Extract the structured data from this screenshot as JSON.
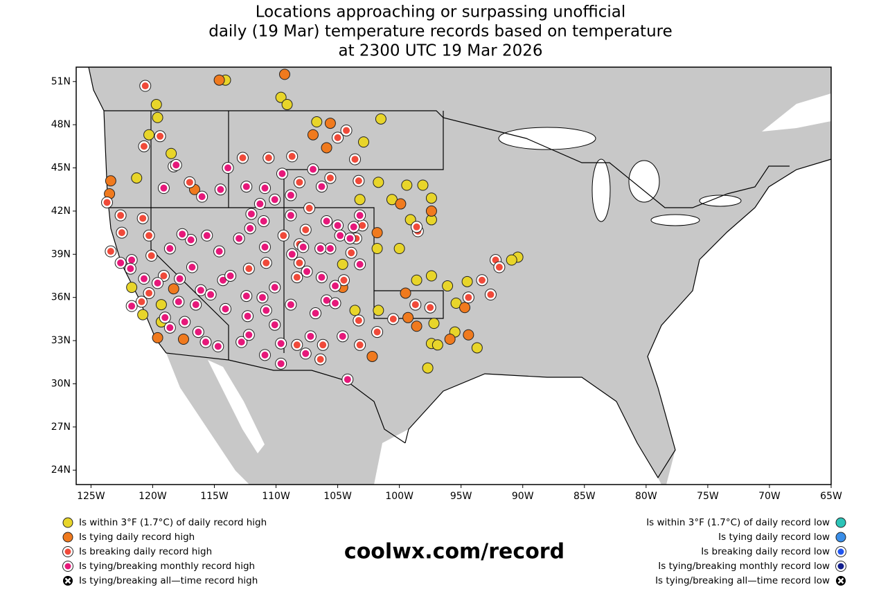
{
  "chart_data": {
    "type": "scatter",
    "title": [
      "Locations approaching or surpassing unofficial",
      "daily (19 Mar) temperature records based on temperature",
      "at 2300 UTC 19 Mar 2026"
    ],
    "annotation": "coolwx.com/record",
    "xlim": [
      -126.2,
      -65
    ],
    "ylim": [
      23,
      52
    ],
    "xticks": [
      {
        "value": -125,
        "label": "125W"
      },
      {
        "value": -120,
        "label": "120W"
      },
      {
        "value": -115,
        "label": "115W"
      },
      {
        "value": -110,
        "label": "110W"
      },
      {
        "value": -105,
        "label": "105W"
      },
      {
        "value": -100,
        "label": "100W"
      },
      {
        "value": -95,
        "label": "95W"
      },
      {
        "value": -90,
        "label": "90W"
      },
      {
        "value": -85,
        "label": "85W"
      },
      {
        "value": -80,
        "label": "80W"
      },
      {
        "value": -75,
        "label": "75W"
      },
      {
        "value": -70,
        "label": "70W"
      },
      {
        "value": -65,
        "label": "65W"
      }
    ],
    "yticks": [
      {
        "value": 24,
        "label": "24N"
      },
      {
        "value": 27,
        "label": "27N"
      },
      {
        "value": 30,
        "label": "30N"
      },
      {
        "value": 33,
        "label": "33N"
      },
      {
        "value": 36,
        "label": "36N"
      },
      {
        "value": 39,
        "label": "39N"
      },
      {
        "value": 42,
        "label": "42N"
      },
      {
        "value": 45,
        "label": "45N"
      },
      {
        "value": 48,
        "label": "48N"
      },
      {
        "value": 51,
        "label": "51N"
      }
    ],
    "series": [
      {
        "name": "Is within 3°F (1.7°C) of daily record high",
        "color": "#e8d52a",
        "marker": "plain",
        "side": "left",
        "x": [
          -114.1,
          -109.6,
          -109.1,
          -119.7,
          -119.6,
          -120.3,
          -118.5,
          -121.3,
          -106.7,
          -101.5,
          -102.9,
          -101.7,
          -103.2,
          -100.6,
          -99.4,
          -98.1,
          -97.4,
          -97.4,
          -99.1,
          -100.0,
          -101.8,
          -104.6,
          -103.6,
          -101.7,
          -98.6,
          -97.4,
          -96.1,
          -95.4,
          -94.5,
          -97.2,
          -97.4,
          -96.9,
          -97.7,
          -95.5,
          -93.7,
          -90.4,
          -90.9,
          -121.7,
          -119.3,
          -120.8,
          -119.3
        ],
        "y": [
          51.1,
          49.9,
          49.4,
          49.4,
          48.5,
          47.3,
          46.0,
          44.3,
          48.2,
          48.4,
          46.8,
          44.0,
          42.8,
          42.8,
          43.8,
          43.8,
          42.9,
          41.4,
          41.4,
          39.4,
          39.4,
          38.3,
          35.1,
          35.1,
          37.2,
          37.5,
          36.8,
          35.6,
          37.1,
          34.2,
          32.8,
          32.7,
          31.1,
          33.6,
          32.5,
          38.8,
          38.6,
          36.7,
          35.5,
          34.8,
          34.3
        ]
      },
      {
        "name": "Is tying daily record high",
        "color": "#f07a1e",
        "marker": "plain",
        "side": "left",
        "x": [
          -114.6,
          -109.3,
          -107.0,
          -105.6,
          -105.9,
          -123.4,
          -123.5,
          -97.4,
          -99.9,
          -101.8,
          -104.6,
          -102.2,
          -99.5,
          -99.3,
          -98.6,
          -95.9,
          -94.4,
          -94.7,
          -119.6,
          -117.5,
          -118.3,
          -116.6
        ],
        "y": [
          51.1,
          51.5,
          47.3,
          48.1,
          46.4,
          44.1,
          43.2,
          42.0,
          42.5,
          40.5,
          36.7,
          31.9,
          36.3,
          34.6,
          34.0,
          33.1,
          33.4,
          35.3,
          33.2,
          33.1,
          36.6,
          43.5
        ]
      },
      {
        "name": "Is breaking daily record high",
        "color": "#f04a3a",
        "marker": "ringed",
        "side": "left",
        "x": [
          -120.6,
          -120.7,
          -119.4,
          -118.3,
          -117.0,
          -123.7,
          -122.6,
          -122.5,
          -120.8,
          -123.4,
          -120.3,
          -120.1,
          -119.1,
          -120.3,
          -120.9,
          -112.7,
          -110.6,
          -108.7,
          -108.1,
          -105.6,
          -107.3,
          -103.6,
          -103.3,
          -104.3,
          -105.0,
          -109.4,
          -110.8,
          -112.2,
          -104.5,
          -103.5,
          -103.0,
          -103.9,
          -101.8,
          -103.2,
          -103.3,
          -100.5,
          -98.5,
          -98.6,
          -93.3,
          -92.2,
          -91.9,
          -92.6,
          -94.4,
          -97.5,
          -98.7,
          -108.3,
          -106.2,
          -106.4,
          -107.6,
          -108.1,
          -108.1,
          -108.3
        ],
        "y": [
          50.7,
          46.5,
          47.2,
          45.1,
          44.0,
          42.6,
          41.7,
          40.5,
          41.5,
          39.2,
          40.3,
          38.9,
          37.5,
          36.3,
          35.7,
          45.7,
          45.7,
          45.8,
          44.0,
          44.3,
          42.2,
          45.6,
          44.1,
          47.6,
          47.1,
          40.3,
          38.4,
          38.0,
          37.2,
          40.1,
          41.0,
          39.1,
          33.6,
          32.7,
          34.4,
          34.5,
          40.6,
          40.9,
          37.2,
          38.6,
          38.1,
          36.2,
          36.0,
          35.3,
          35.5,
          32.7,
          32.7,
          31.7,
          40.7,
          39.7,
          38.4,
          37.4
        ]
      },
      {
        "name": "Is tying/breaking monthly record high",
        "color": "#e6187a",
        "marker": "ringed",
        "side": "left",
        "x": [
          -118.1,
          -119.1,
          -116.0,
          -114.5,
          -113.9,
          -112.4,
          -111.3,
          -110.9,
          -110.1,
          -109.5,
          -106.3,
          -107.0,
          -108.8,
          -112.0,
          -111.0,
          -112.1,
          -113.0,
          -110.9,
          -108.8,
          -105.9,
          -105.0,
          -104.8,
          -105.6,
          -106.4,
          -107.8,
          -108.7,
          -107.5,
          -106.3,
          -105.9,
          -105.2,
          -106.8,
          -108.8,
          -110.8,
          -110.1,
          -112.3,
          -112.8,
          -112.2,
          -110.9,
          -109.6,
          -109.6,
          -107.2,
          -104.6,
          -104.2,
          -107.6,
          -114.7,
          -115.7,
          -116.3,
          -117.4,
          -118.6,
          -119.0,
          -117.9,
          -116.5,
          -114.6,
          -115.6,
          -116.9,
          -117.6,
          -118.6,
          -117.8,
          -116.1,
          -115.3,
          -114.1,
          -114.3,
          -113.7,
          -116.8,
          -121.7,
          -121.8,
          -122.6,
          -121.7,
          -120.7,
          -119.6,
          -103.2,
          -103.7,
          -104.0,
          -103.2,
          -105.2,
          -111.1,
          -112.4,
          -110.1
        ],
        "y": [
          45.2,
          43.6,
          43.0,
          43.5,
          45.0,
          43.7,
          42.5,
          43.6,
          42.8,
          44.6,
          43.7,
          44.9,
          43.1,
          41.8,
          41.3,
          40.8,
          40.1,
          39.5,
          41.7,
          41.3,
          41.0,
          40.3,
          39.4,
          39.4,
          39.5,
          39.0,
          37.8,
          37.4,
          35.8,
          35.6,
          34.9,
          35.5,
          35.1,
          34.1,
          34.7,
          32.9,
          33.4,
          32.0,
          31.4,
          32.8,
          33.3,
          33.3,
          30.3,
          32.1,
          32.6,
          32.9,
          33.6,
          34.3,
          33.9,
          34.6,
          35.7,
          35.5,
          39.2,
          40.3,
          40.0,
          40.4,
          39.4,
          37.3,
          36.5,
          36.2,
          35.2,
          37.2,
          37.5,
          38.1,
          38.6,
          38.0,
          38.4,
          35.4,
          37.3,
          37.0,
          41.7,
          40.9,
          40.1,
          38.3,
          36.8,
          36.0,
          36.1,
          36.7
        ]
      },
      {
        "name": "Is tying/breaking all—time record high",
        "color": "#000000",
        "marker": "cross",
        "side": "left",
        "x": [],
        "y": []
      },
      {
        "name": "Is within 3°F (1.7°C) of daily record low",
        "color": "#2cc4b8",
        "marker": "plain",
        "side": "right",
        "x": [],
        "y": []
      },
      {
        "name": "Is tying daily record low",
        "color": "#3a8ee8",
        "marker": "plain",
        "side": "right",
        "x": [],
        "y": []
      },
      {
        "name": "Is breaking daily record low",
        "color": "#1f55f0",
        "marker": "ringed",
        "side": "right",
        "x": [],
        "y": []
      },
      {
        "name": "Is tying/breaking monthly record low",
        "color": "#101c8c",
        "marker": "ringed",
        "side": "right",
        "x": [],
        "y": []
      },
      {
        "name": "Is tying/breaking all—time record low",
        "color": "#000000",
        "marker": "cross",
        "side": "right",
        "x": [],
        "y": []
      }
    ]
  }
}
